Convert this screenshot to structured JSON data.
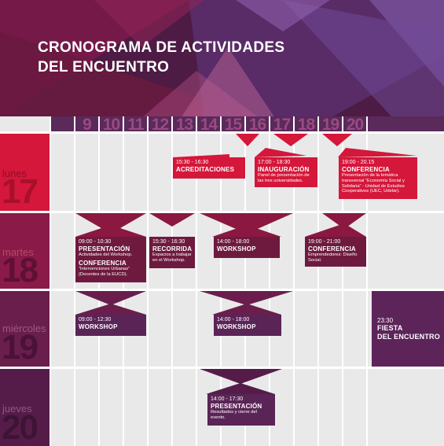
{
  "title": {
    "line1": "CRONOGRAMA DE ACTIVIDADES",
    "line2": "DEL ENCUENTRO"
  },
  "hours": [
    "9",
    "10",
    "11",
    "12",
    "13",
    "14",
    "15",
    "16",
    "17",
    "18",
    "19",
    "20"
  ],
  "days": [
    {
      "name": "lunes",
      "number": "17"
    },
    {
      "name": "martes",
      "number": "18"
    },
    {
      "name": "miércoles",
      "number": "19"
    },
    {
      "name": "jueves",
      "number": "20"
    }
  ],
  "events": {
    "acreditaciones": {
      "time": "15:30 - 16:30",
      "title": "ACREDITACIONES"
    },
    "inauguracion": {
      "time": "17:00 - 18:30",
      "title": "INAUGURACIÓN",
      "desc": "Panel de presentación de las tres universidades."
    },
    "conferencia_lunes": {
      "time": "19:00 - 20.15",
      "title": "CONFERENCIA",
      "desc": "Presentación de la temática transversal “Economía Social y Solidaria” - Unidad de Estudios Cooperativos (UEC, Udelar)."
    },
    "presentacion_martes": {
      "time": "09:00 - 10:30",
      "title": "PRESENTACIÓN",
      "desc": "Actividades del Workshop.",
      "title2": "CONFERENCIA",
      "desc2": "“Intervenciones Urbanas” (Docentes de la EUCD)."
    },
    "recorrida": {
      "time": "15:30 - 16:30",
      "title": "RECORRIDA",
      "desc": "Espacios a trabajar en el Workshop."
    },
    "workshop_martes": {
      "time": "14:00 - 18:00",
      "title": "WORKSHOP"
    },
    "conferencia_martes": {
      "time": "19:00 - 21:00",
      "title": "CONFERENCIA",
      "desc": "Emprendedores: Diseño Social."
    },
    "workshop_mie_am": {
      "time": "09:00 - 12:30",
      "title": "WORKSHOP"
    },
    "workshop_mie_pm": {
      "time": "14:00 - 18:00",
      "title": "WORKSHOP"
    },
    "fiesta": {
      "time": "23:30",
      "title": "FIESTA",
      "title2": "DEL ENCUENTRO"
    },
    "presentacion_jueves": {
      "time": "14:00 - 17:30",
      "title": "PRESENTACIÓN",
      "desc": "Resultados y cierre del evento."
    }
  },
  "colors": {
    "red": "#d4173a",
    "maroon": "#6e1a3e",
    "purple": "#5a2456",
    "header_bg": "#4a1a42",
    "grid_bg": "#e9e9ea"
  }
}
